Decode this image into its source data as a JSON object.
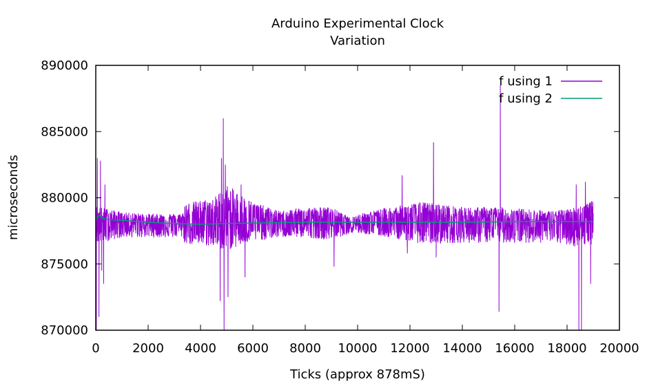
{
  "chart_data": {
    "type": "line",
    "title_lines": [
      "Arduino Experimental Clock",
      "Variation"
    ],
    "xlabel": "Ticks (approx 878mS)",
    "ylabel": "microseconds",
    "xlim": [
      0,
      20000
    ],
    "ylim": [
      870000,
      890000
    ],
    "x_ticks": [
      0,
      2000,
      4000,
      6000,
      8000,
      10000,
      12000,
      14000,
      16000,
      18000,
      20000
    ],
    "y_ticks": [
      870000,
      875000,
      880000,
      885000,
      890000
    ],
    "grid": false,
    "legend_position": "top-right",
    "series": [
      {
        "name": "f using 1",
        "color": "#9400d3",
        "style": "noisy-line",
        "x_range": [
          0,
          19000
        ],
        "baseline": 878200,
        "envelope": [
          {
            "x": 0,
            "lo": 876500,
            "hi": 879400
          },
          {
            "x": 1000,
            "lo": 877000,
            "hi": 878900
          },
          {
            "x": 2000,
            "lo": 877000,
            "hi": 878800
          },
          {
            "x": 3300,
            "lo": 877000,
            "hi": 878800
          },
          {
            "x": 3400,
            "lo": 876500,
            "hi": 879600
          },
          {
            "x": 4500,
            "lo": 876300,
            "hi": 880000
          },
          {
            "x": 5000,
            "lo": 876000,
            "hi": 881000
          },
          {
            "x": 6000,
            "lo": 876700,
            "hi": 879700
          },
          {
            "x": 7000,
            "lo": 877000,
            "hi": 879000
          },
          {
            "x": 8000,
            "lo": 877000,
            "hi": 879300
          },
          {
            "x": 9000,
            "lo": 876800,
            "hi": 879300
          },
          {
            "x": 9700,
            "lo": 877300,
            "hi": 878500
          },
          {
            "x": 10100,
            "lo": 877300,
            "hi": 878800
          },
          {
            "x": 11200,
            "lo": 877000,
            "hi": 879300
          },
          {
            "x": 12500,
            "lo": 876500,
            "hi": 879700
          },
          {
            "x": 14000,
            "lo": 876600,
            "hi": 879300
          },
          {
            "x": 15500,
            "lo": 876600,
            "hi": 879300
          },
          {
            "x": 17500,
            "lo": 876600,
            "hi": 879000
          },
          {
            "x": 18300,
            "lo": 876300,
            "hi": 879300
          },
          {
            "x": 19000,
            "lo": 876500,
            "hi": 879800
          }
        ],
        "spikes": [
          [
            20,
            870000
          ],
          [
            60,
            883000
          ],
          [
            120,
            871000
          ],
          [
            180,
            882800
          ],
          [
            230,
            874500
          ],
          [
            300,
            873500
          ],
          [
            350,
            881000
          ],
          [
            4750,
            872200
          ],
          [
            4800,
            883000
          ],
          [
            4870,
            886000
          ],
          [
            4900,
            870000
          ],
          [
            4950,
            882500
          ],
          [
            5050,
            872500
          ],
          [
            5550,
            881000
          ],
          [
            5700,
            874000
          ],
          [
            9100,
            874800
          ],
          [
            11700,
            881700
          ],
          [
            11900,
            875800
          ],
          [
            12900,
            884200
          ],
          [
            13000,
            875500
          ],
          [
            15400,
            871400
          ],
          [
            15450,
            888500
          ],
          [
            18350,
            881000
          ],
          [
            18450,
            870000
          ],
          [
            18550,
            870000
          ],
          [
            18700,
            881200
          ],
          [
            18900,
            873500
          ]
        ]
      },
      {
        "name": "f using 2",
        "color": "#009e73",
        "style": "smooth-line",
        "points": [
          [
            0,
            878300
          ],
          [
            50,
            878500
          ],
          [
            150,
            878700
          ],
          [
            250,
            878450
          ],
          [
            500,
            878350
          ],
          [
            1000,
            878300
          ],
          [
            2000,
            878150
          ],
          [
            3000,
            878050
          ],
          [
            4000,
            878000
          ],
          [
            5000,
            878050
          ],
          [
            6000,
            878100
          ],
          [
            8000,
            878150
          ],
          [
            10000,
            878150
          ],
          [
            12000,
            878150
          ],
          [
            14000,
            878150
          ],
          [
            16000,
            878200
          ],
          [
            18000,
            878200
          ],
          [
            19000,
            878200
          ]
        ]
      }
    ]
  }
}
